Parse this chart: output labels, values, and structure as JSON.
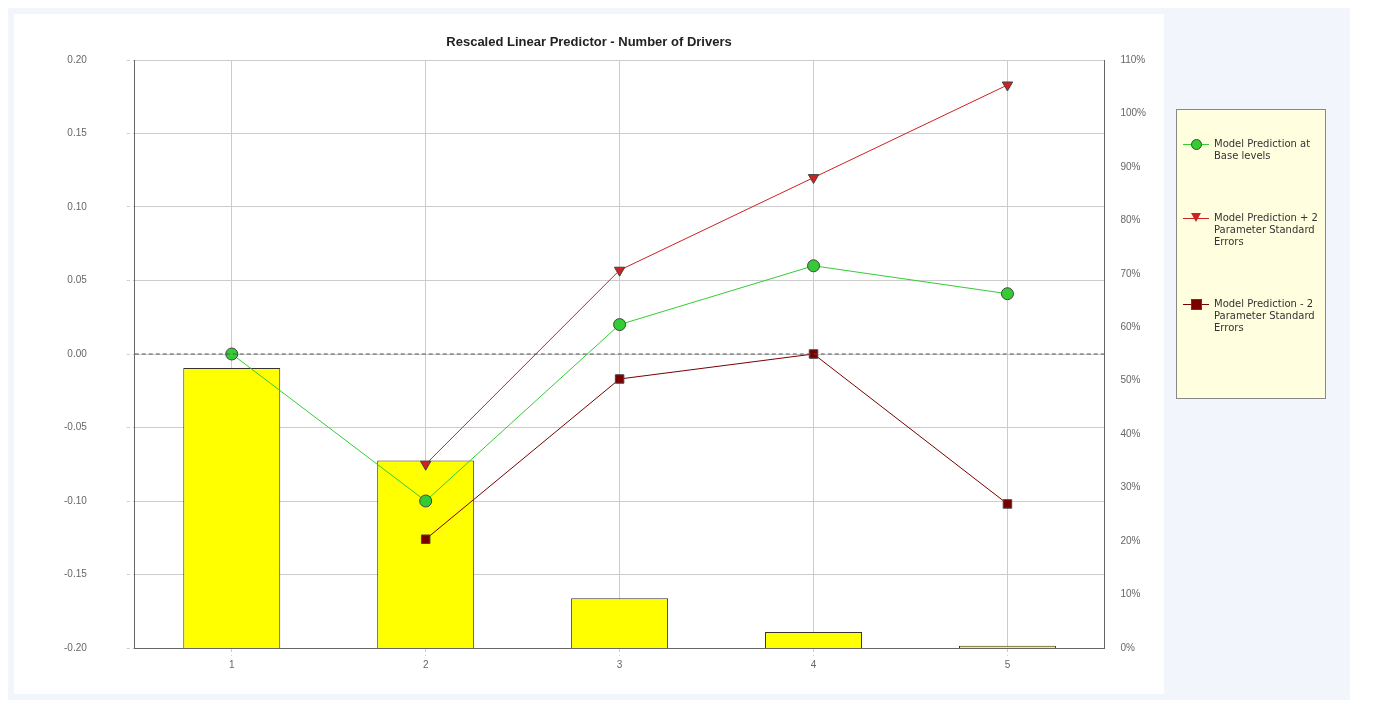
{
  "chart_data": {
    "type": "line",
    "title": "Rescaled Linear Predictor - Number of Drivers",
    "categories": [
      "1",
      "2",
      "3",
      "4",
      "5"
    ],
    "ylim": [
      -0.2,
      0.2
    ],
    "yticks": [
      {
        "value": -0.2,
        "label": "-0.20"
      },
      {
        "value": -0.15,
        "label": "-0.15"
      },
      {
        "value": -0.1,
        "label": "-0.10"
      },
      {
        "value": -0.05,
        "label": "-0.05"
      },
      {
        "value": 0,
        "label": "0.00"
      },
      {
        "value": 0.05,
        "label": "0.05"
      },
      {
        "value": 0.1,
        "label": "0.10"
      },
      {
        "value": 0.15,
        "label": "0.15"
      },
      {
        "value": 0.2,
        "label": "0.20"
      }
    ],
    "y2lim": [
      0,
      110
    ],
    "y2ticks": [
      {
        "value": 0,
        "label": "0%"
      },
      {
        "value": 10,
        "label": "10%"
      },
      {
        "value": 20,
        "label": "20%"
      },
      {
        "value": 30,
        "label": "30%"
      },
      {
        "value": 40,
        "label": "40%"
      },
      {
        "value": 50,
        "label": "50%"
      },
      {
        "value": 60,
        "label": "60%"
      },
      {
        "value": 70,
        "label": "70%"
      },
      {
        "value": 80,
        "label": "80%"
      },
      {
        "value": 90,
        "label": "90%"
      },
      {
        "value": 100,
        "label": "100%"
      },
      {
        "value": 110,
        "label": "110%"
      }
    ],
    "series": [
      {
        "type": "bar",
        "axis": "y2",
        "color": "#ffff00",
        "values": [
          52.4,
          35.1,
          9.3,
          3.0,
          0.4
        ]
      },
      {
        "name": "Model Prediction at Base levels",
        "color": "#33cc33",
        "marker": "circle",
        "values": [
          0.0,
          -0.1,
          0.02,
          0.06,
          0.041
        ]
      },
      {
        "name": "Model Prediction + 2 Parameter Standard Errors",
        "color": "#cc2222",
        "marker": "triangle",
        "values": [
          null,
          -0.075,
          0.057,
          0.12,
          0.183
        ]
      },
      {
        "name": "Model Prediction - 2 Parameter Standard Errors",
        "color": "#7a0000",
        "marker": "square",
        "values": [
          null,
          -0.126,
          -0.017,
          0.0,
          -0.102
        ]
      }
    ],
    "ref_lines": [
      {
        "axis": "y",
        "value": 0,
        "color": "#555555",
        "line_style": "dashed"
      }
    ],
    "grid": true,
    "legend": "right"
  }
}
